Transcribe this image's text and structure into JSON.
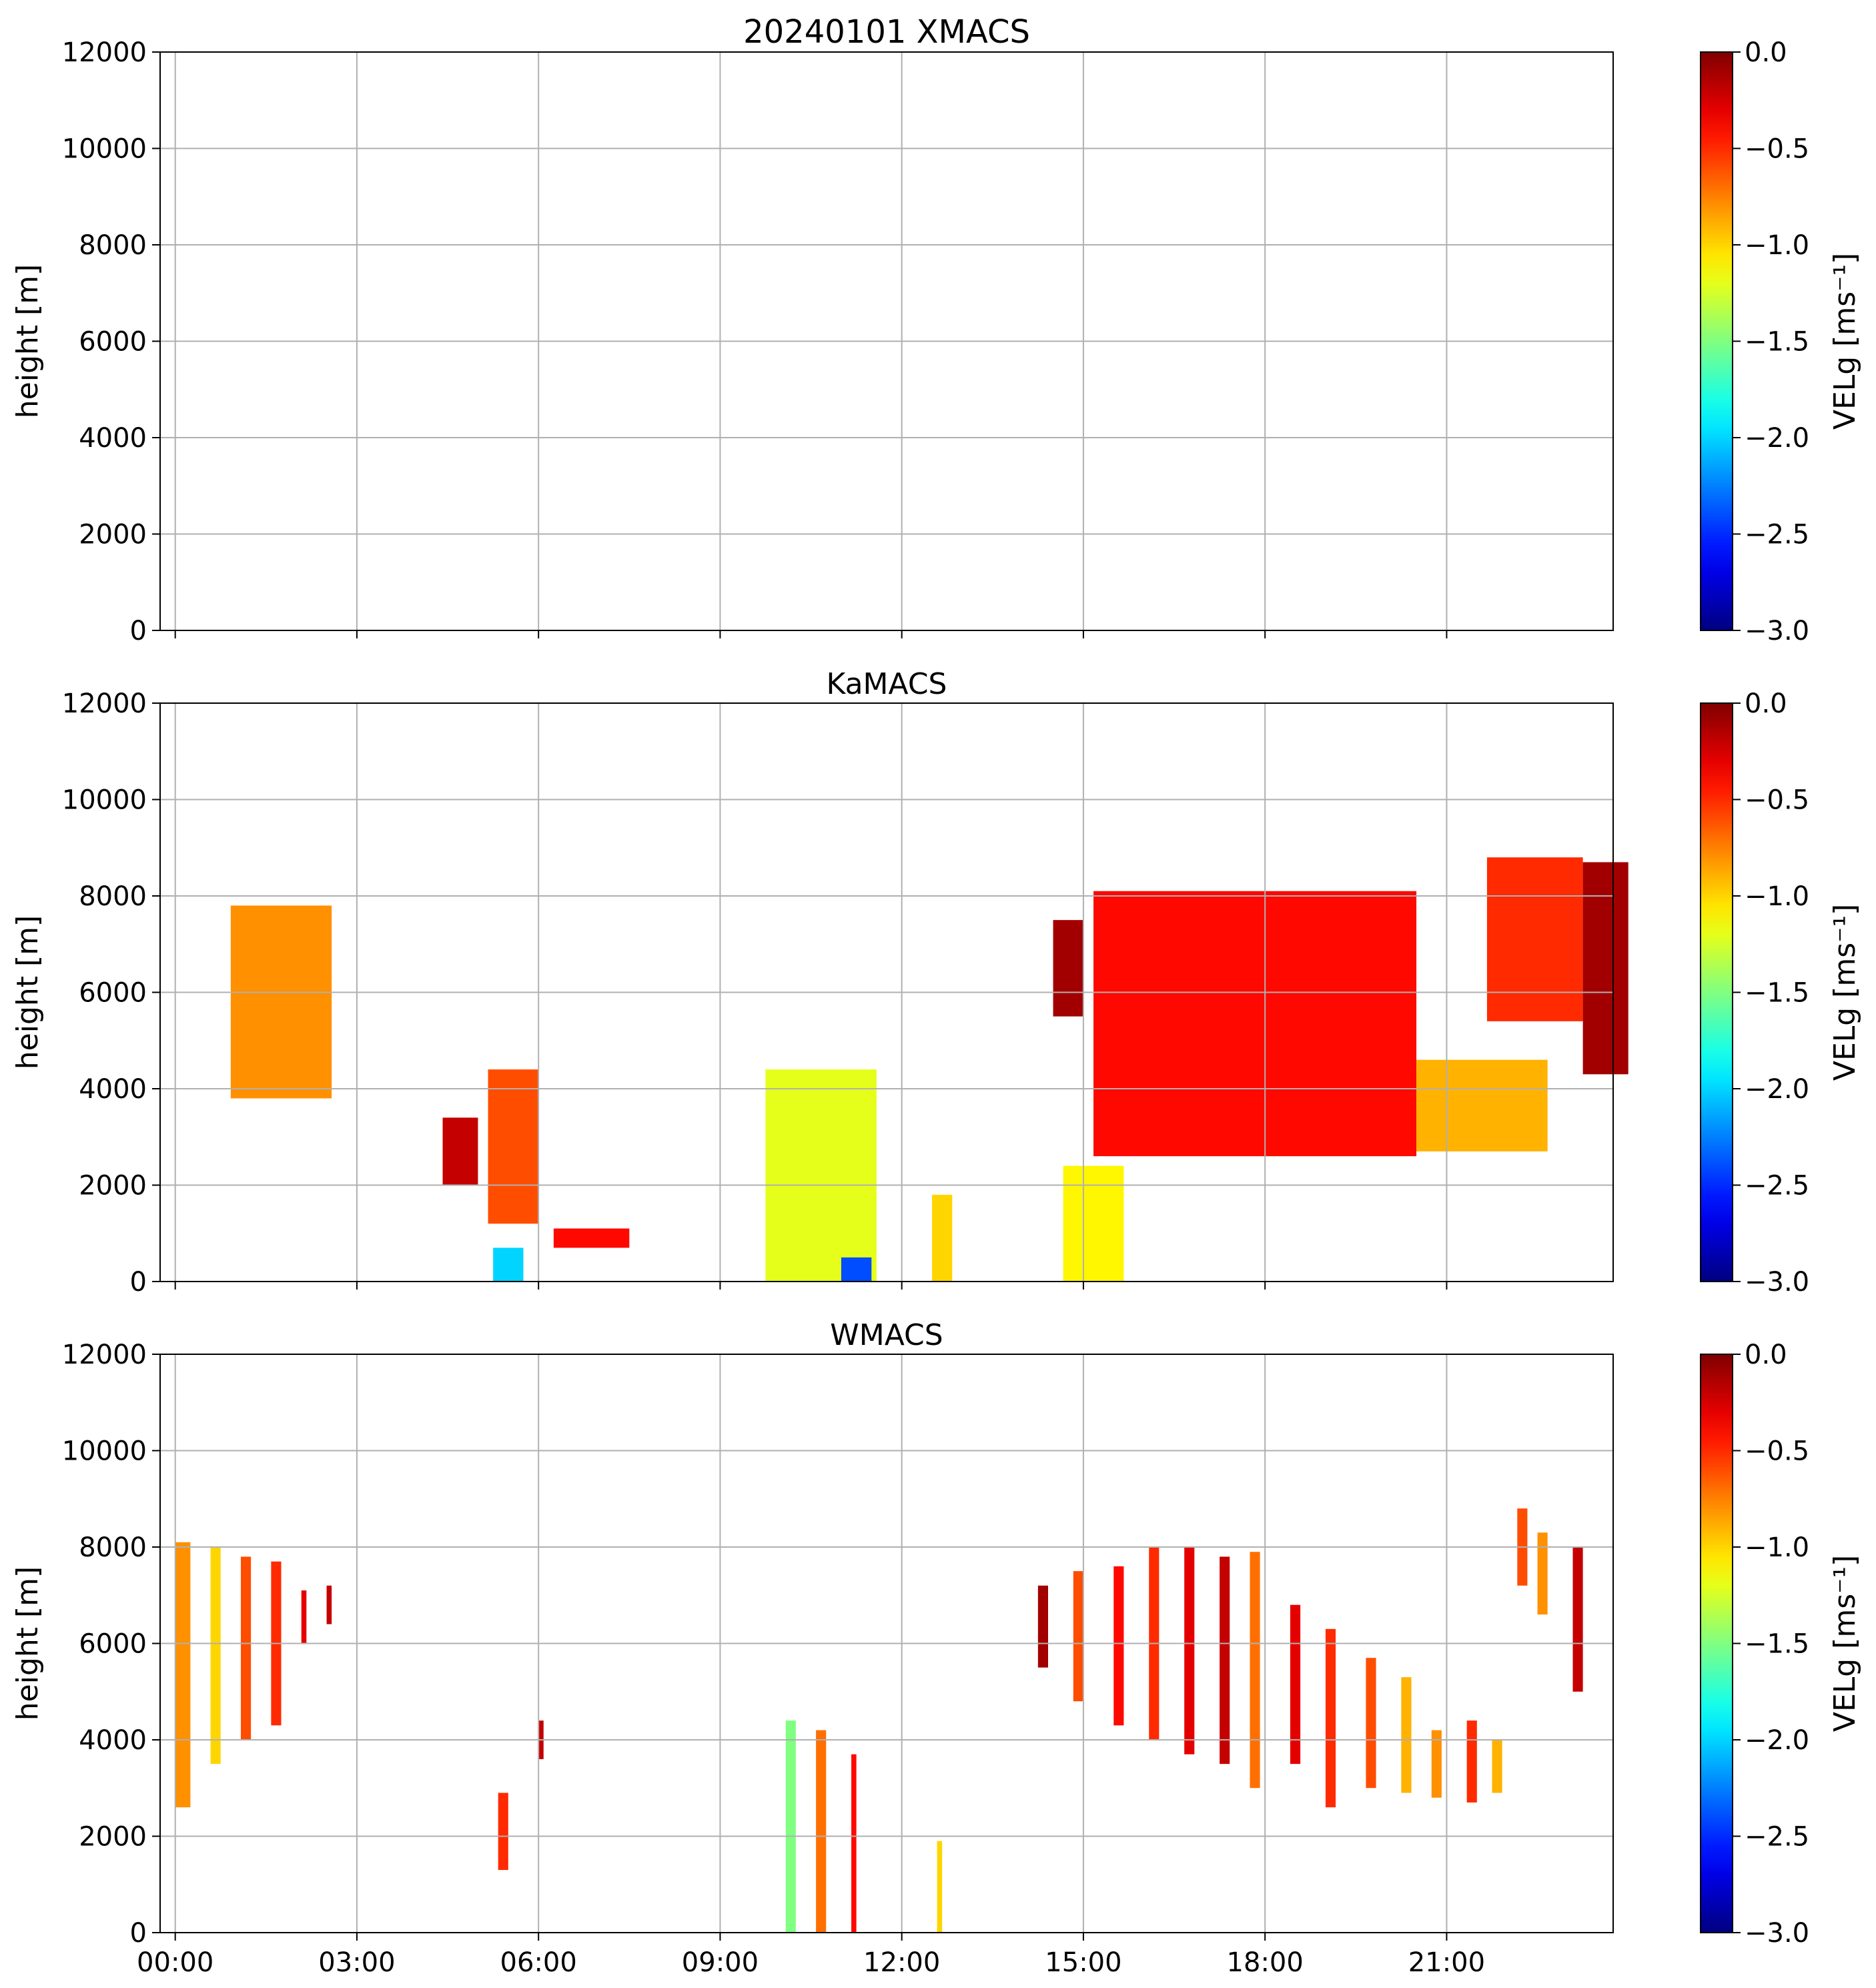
{
  "figure": {
    "title": "20240101 XMACS"
  },
  "chart_data": [
    {
      "type": "heatmap",
      "title": "20240101 XMACS",
      "xlabel": "",
      "ylabel": "height [m]",
      "ylim": [
        0,
        12000
      ],
      "y_ticks": [
        "0",
        "2000",
        "4000",
        "6000",
        "8000",
        "10000",
        "12000"
      ],
      "x_ticks": [
        "00:00",
        "03:00",
        "06:00",
        "09:00",
        "12:00",
        "15:00",
        "18:00",
        "21:00"
      ],
      "x_tick_labels_visible": false,
      "grid": true,
      "colorbar": {
        "label": "VELg [ms⁻¹]",
        "range": [
          -3.0,
          0.0
        ],
        "ticks": [
          "−3.0",
          "−2.5",
          "−2.0",
          "−1.5",
          "−1.0",
          "−0.5",
          "0.0"
        ],
        "colormap": "jet"
      },
      "echoes": []
    },
    {
      "type": "heatmap",
      "title": "KaMACS",
      "xlabel": "",
      "ylabel": "height [m]",
      "ylim": [
        0,
        12000
      ],
      "y_ticks": [
        "0",
        "2000",
        "4000",
        "6000",
        "8000",
        "10000",
        "12000"
      ],
      "x_ticks": [
        "00:00",
        "03:00",
        "06:00",
        "09:00",
        "12:00",
        "15:00",
        "18:00",
        "21:00"
      ],
      "x_tick_labels_visible": false,
      "grid": true,
      "colorbar": {
        "label": "VELg [ms⁻¹]",
        "range": [
          -3.0,
          0.0
        ],
        "ticks": [
          "−3.0",
          "−2.5",
          "−2.0",
          "−1.5",
          "−1.0",
          "−0.5",
          "0.0"
        ],
        "colormap": "jet"
      },
      "echoes": [
        {
          "start": "00:55",
          "end": "02:35",
          "bottom": 3800,
          "top": 7800,
          "vel": -0.8
        },
        {
          "start": "04:25",
          "end": "05:00",
          "bottom": 2000,
          "top": 3400,
          "vel": -0.2
        },
        {
          "start": "05:10",
          "end": "06:00",
          "bottom": 1200,
          "top": 4400,
          "vel": -0.6
        },
        {
          "start": "05:15",
          "end": "05:45",
          "bottom": 0,
          "top": 700,
          "vel": -2.0
        },
        {
          "start": "06:15",
          "end": "07:30",
          "bottom": 700,
          "top": 1100,
          "vel": -0.4
        },
        {
          "start": "09:45",
          "end": "11:35",
          "bottom": 0,
          "top": 4400,
          "vel": -1.2
        },
        {
          "start": "11:00",
          "end": "11:30",
          "bottom": 0,
          "top": 500,
          "vel": -2.4
        },
        {
          "start": "12:30",
          "end": "12:50",
          "bottom": 0,
          "top": 1800,
          "vel": -1.0
        },
        {
          "start": "14:40",
          "end": "15:40",
          "bottom": 0,
          "top": 2400,
          "vel": -1.1
        },
        {
          "start": "14:30",
          "end": "15:00",
          "bottom": 5500,
          "top": 7500,
          "vel": -0.1
        },
        {
          "start": "15:10",
          "end": "20:30",
          "bottom": 2600,
          "top": 8100,
          "vel": -0.4
        },
        {
          "start": "20:30",
          "end": "22:40",
          "bottom": 2700,
          "top": 4600,
          "vel": -0.9
        },
        {
          "start": "21:40",
          "end": "23:15",
          "bottom": 5400,
          "top": 8800,
          "vel": -0.5
        },
        {
          "start": "23:15",
          "end": "24:00",
          "bottom": 4300,
          "top": 8700,
          "vel": -0.1
        }
      ]
    },
    {
      "type": "heatmap",
      "title": "WMACS",
      "xlabel": "",
      "ylabel": "height [m]",
      "ylim": [
        0,
        12000
      ],
      "y_ticks": [
        "0",
        "2000",
        "4000",
        "6000",
        "8000",
        "10000",
        "12000"
      ],
      "x_ticks": [
        "00:00",
        "03:00",
        "06:00",
        "09:00",
        "12:00",
        "15:00",
        "18:00",
        "21:00"
      ],
      "x_tick_labels_visible": true,
      "grid": true,
      "colorbar": {
        "label": "VELg [ms⁻¹]",
        "range": [
          -3.0,
          0.0
        ],
        "ticks": [
          "−3.0",
          "−2.5",
          "−2.0",
          "−1.5",
          "−1.0",
          "−0.5",
          "0.0"
        ],
        "colormap": "jet"
      },
      "echoes": [
        {
          "start": "00:00",
          "end": "00:15",
          "bottom": 2600,
          "top": 8100,
          "vel": -0.8
        },
        {
          "start": "00:35",
          "end": "00:45",
          "bottom": 3500,
          "top": 8000,
          "vel": -1.0
        },
        {
          "start": "01:05",
          "end": "01:15",
          "bottom": 4000,
          "top": 7800,
          "vel": -0.6
        },
        {
          "start": "01:35",
          "end": "01:45",
          "bottom": 4300,
          "top": 7700,
          "vel": -0.5
        },
        {
          "start": "02:05",
          "end": "02:10",
          "bottom": 6000,
          "top": 7100,
          "vel": -0.3
        },
        {
          "start": "02:30",
          "end": "02:35",
          "bottom": 6400,
          "top": 7200,
          "vel": -0.2
        },
        {
          "start": "05:20",
          "end": "05:30",
          "bottom": 1300,
          "top": 2900,
          "vel": -0.5
        },
        {
          "start": "06:00",
          "end": "06:05",
          "bottom": 3600,
          "top": 4400,
          "vel": -0.2
        },
        {
          "start": "10:05",
          "end": "10:15",
          "bottom": 0,
          "top": 4400,
          "vel": -1.5
        },
        {
          "start": "10:35",
          "end": "10:45",
          "bottom": 0,
          "top": 4200,
          "vel": -0.7
        },
        {
          "start": "11:10",
          "end": "11:15",
          "bottom": 0,
          "top": 3700,
          "vel": -0.4
        },
        {
          "start": "12:35",
          "end": "12:40",
          "bottom": 0,
          "top": 1900,
          "vel": -1.0
        },
        {
          "start": "14:15",
          "end": "14:25",
          "bottom": 5500,
          "top": 7200,
          "vel": -0.1
        },
        {
          "start": "14:50",
          "end": "15:00",
          "bottom": 4800,
          "top": 7500,
          "vel": -0.6
        },
        {
          "start": "15:30",
          "end": "15:40",
          "bottom": 4300,
          "top": 7600,
          "vel": -0.4
        },
        {
          "start": "16:05",
          "end": "16:15",
          "bottom": 4000,
          "top": 8000,
          "vel": -0.5
        },
        {
          "start": "16:40",
          "end": "16:50",
          "bottom": 3700,
          "top": 8000,
          "vel": -0.3
        },
        {
          "start": "17:15",
          "end": "17:25",
          "bottom": 3500,
          "top": 7800,
          "vel": -0.2
        },
        {
          "start": "17:45",
          "end": "17:55",
          "bottom": 3000,
          "top": 7900,
          "vel": -0.7
        },
        {
          "start": "18:25",
          "end": "18:35",
          "bottom": 3500,
          "top": 6800,
          "vel": -0.3
        },
        {
          "start": "19:00",
          "end": "19:10",
          "bottom": 2600,
          "top": 6300,
          "vel": -0.5
        },
        {
          "start": "19:40",
          "end": "19:50",
          "bottom": 3000,
          "top": 5700,
          "vel": -0.6
        },
        {
          "start": "20:15",
          "end": "20:25",
          "bottom": 2900,
          "top": 5300,
          "vel": -0.9
        },
        {
          "start": "20:45",
          "end": "20:55",
          "bottom": 2800,
          "top": 4200,
          "vel": -0.8
        },
        {
          "start": "21:20",
          "end": "21:30",
          "bottom": 2700,
          "top": 4400,
          "vel": -0.5
        },
        {
          "start": "21:45",
          "end": "21:55",
          "bottom": 2900,
          "top": 4000,
          "vel": -0.9
        },
        {
          "start": "22:10",
          "end": "22:20",
          "bottom": 7200,
          "top": 8800,
          "vel": -0.6
        },
        {
          "start": "22:30",
          "end": "22:40",
          "bottom": 6600,
          "top": 8300,
          "vel": -0.8
        },
        {
          "start": "23:05",
          "end": "23:15",
          "bottom": 5000,
          "top": 8000,
          "vel": -0.2
        }
      ]
    }
  ]
}
